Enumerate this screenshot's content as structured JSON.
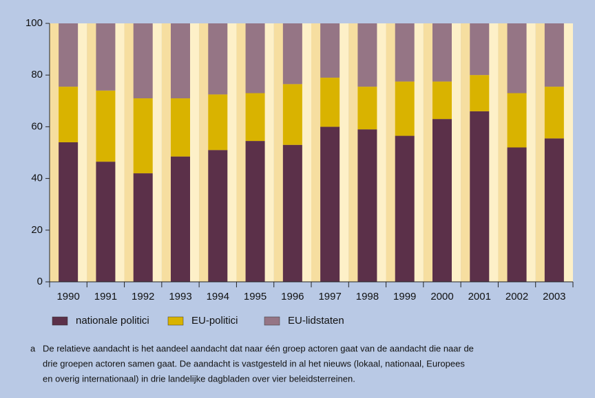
{
  "chart_data": {
    "type": "stacked_bar",
    "categories": [
      "1990",
      "1991",
      "1992",
      "1993",
      "1994",
      "1995",
      "1996",
      "1997",
      "1998",
      "1999",
      "2000",
      "2001",
      "2002",
      "2003"
    ],
    "series": [
      {
        "name": "nationale politici",
        "color": "#5b3049",
        "values": [
          54,
          46.5,
          42,
          48.5,
          51,
          54.5,
          53,
          60,
          59,
          56.5,
          63,
          66,
          52,
          55.5
        ]
      },
      {
        "name": "EU-politici",
        "color": "#d9b300",
        "values": [
          21.5,
          27.5,
          29,
          22.5,
          21.5,
          18.5,
          23.5,
          19,
          16.5,
          21,
          14.5,
          14,
          21,
          20
        ]
      },
      {
        "name": "EU-lidstaten",
        "color": "#957585",
        "values": [
          24.5,
          26,
          29,
          29,
          27.5,
          27,
          23.5,
          21,
          24.5,
          22.5,
          22.5,
          20,
          27,
          24.5
        ]
      }
    ],
    "ylim": [
      0,
      100
    ],
    "yticks": [
      0,
      20,
      40,
      60,
      80,
      100
    ],
    "footnote": {
      "marker": "a",
      "lines": [
        "De relatieve aandacht is het aandeel aandacht dat naar één groep actoren gaat van de aandacht die naar de",
        "drie groepen actoren samen gaat. De aandacht is vastgesteld in al het nieuws (lokaal, nationaal, Europees",
        "en overig internationaal) in drie landelijke dagbladen over vier beleidsterreinen."
      ]
    }
  }
}
